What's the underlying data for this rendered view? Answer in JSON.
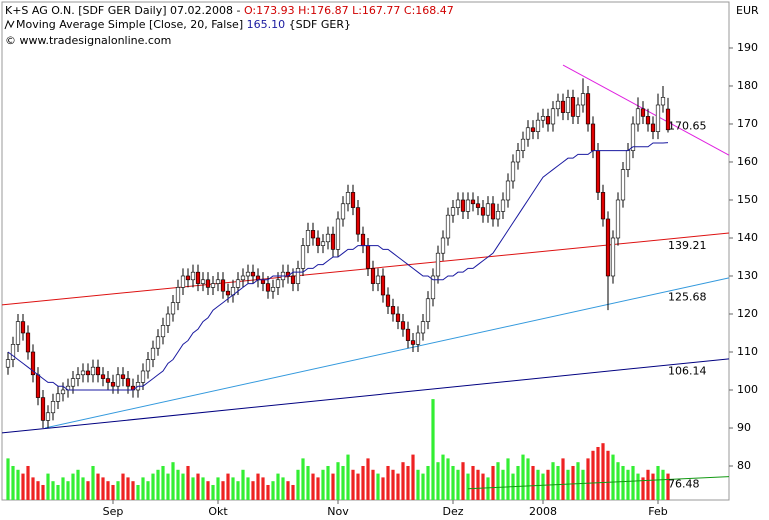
{
  "chart_data": {
    "type": "candlestick",
    "title": "K+S AG O.N. [SDF GER  Daily] 07.02.2008 - ",
    "ohlc_label": "O:173.93 H:176.87 L:167.77 C:168.47",
    "ma_label": "Moving Average Simple [Close, 20, False]",
    "ma_value_label": "165.10",
    "ma_suffix": " {SDF GER}",
    "copyright": "© www.tradesignalonline.com",
    "currency": "EUR",
    "up_color": "#ffffff",
    "down_color": "#e00000",
    "wick_color": "#000000",
    "volume_up_color": "#33ee33",
    "volume_down_color": "#ee2222",
    "ma_color": "#1a1aa0",
    "categories": [
      null,
      null,
      null,
      null,
      null,
      null,
      null,
      null,
      null,
      null,
      null,
      null,
      null,
      null,
      null,
      null,
      null,
      null,
      null,
      null,
      null,
      "Sep",
      null,
      null,
      null,
      null,
      null,
      null,
      null,
      null,
      null,
      null,
      null,
      null,
      null,
      null,
      null,
      null,
      null,
      null,
      null,
      null,
      "Okt",
      null,
      null,
      null,
      null,
      null,
      null,
      null,
      null,
      null,
      null,
      null,
      null,
      null,
      null,
      null,
      null,
      null,
      null,
      null,
      null,
      null,
      null,
      null,
      "Nov",
      null,
      null,
      null,
      null,
      null,
      null,
      null,
      null,
      null,
      null,
      null,
      null,
      null,
      null,
      null,
      null,
      null,
      null,
      null,
      null,
      null,
      null,
      "Dez",
      null,
      null,
      null,
      null,
      null,
      null,
      null,
      null,
      null,
      null,
      null,
      null,
      null,
      null,
      null,
      null,
      null,
      "2008",
      null,
      null,
      null,
      null,
      null,
      null,
      null,
      null,
      null,
      null,
      null,
      null,
      null,
      null,
      null,
      null,
      null,
      null,
      null,
      null,
      null,
      null,
      "Feb",
      null,
      null
    ],
    "open": [
      106,
      108,
      112,
      118,
      115,
      110,
      104,
      98,
      92,
      94,
      97,
      99,
      100,
      101,
      103,
      104,
      105,
      104,
      106,
      104,
      103,
      102,
      101,
      104,
      103,
      101,
      100,
      102,
      105,
      108,
      111,
      114,
      117,
      120,
      123,
      127,
      130,
      129,
      131,
      128,
      129,
      127,
      128,
      129,
      126,
      125,
      127,
      129,
      130,
      131,
      130,
      129,
      128,
      126,
      127,
      129,
      131,
      130,
      128,
      132,
      138,
      142,
      140,
      138,
      139,
      141,
      137,
      145,
      149,
      152,
      148,
      141,
      138,
      132,
      128,
      130,
      125,
      122,
      120,
      118,
      116,
      113,
      112,
      115,
      118,
      124,
      130,
      136,
      140,
      146,
      148,
      150,
      147,
      150,
      149,
      148,
      146,
      149,
      145,
      147,
      150,
      155,
      160,
      163,
      166,
      169,
      168,
      171,
      172,
      170,
      174,
      176,
      173,
      177,
      172,
      175,
      178,
      170,
      163,
      152,
      145,
      130,
      140,
      150,
      158,
      163,
      170,
      174,
      172,
      170,
      168,
      175,
      173.93
    ],
    "high": [
      110,
      114,
      120,
      120,
      117,
      112,
      106,
      100,
      96,
      99,
      101,
      102,
      103,
      105,
      106,
      107,
      107,
      108,
      108,
      106,
      105,
      104,
      106,
      106,
      105,
      103,
      104,
      107,
      110,
      113,
      116,
      119,
      122,
      125,
      129,
      132,
      132,
      133,
      133,
      131,
      131,
      130,
      131,
      131,
      128,
      129,
      131,
      132,
      133,
      133,
      132,
      131,
      130,
      129,
      131,
      133,
      133,
      132,
      134,
      140,
      144,
      144,
      142,
      141,
      143,
      143,
      147,
      151,
      154,
      154,
      150,
      143,
      140,
      134,
      132,
      132,
      127,
      124,
      122,
      120,
      118,
      115,
      117,
      120,
      126,
      132,
      138,
      142,
      148,
      150,
      152,
      152,
      152,
      152,
      151,
      150,
      151,
      151,
      149,
      152,
      157,
      162,
      165,
      168,
      171,
      171,
      173,
      174,
      174,
      176,
      178,
      178,
      179,
      179,
      177,
      182,
      180,
      172,
      165,
      154,
      147,
      142,
      152,
      160,
      165,
      172,
      177,
      176,
      174,
      172,
      178,
      180,
      176.87
    ],
    "low": [
      104,
      106,
      110,
      113,
      108,
      102,
      96,
      90,
      90,
      92,
      95,
      97,
      98,
      99,
      101,
      102,
      102,
      102,
      102,
      101,
      100,
      99,
      99,
      101,
      99,
      98,
      98,
      100,
      103,
      106,
      109,
      112,
      115,
      118,
      121,
      125,
      127,
      127,
      126,
      126,
      125,
      125,
      126,
      124,
      123,
      123,
      125,
      127,
      128,
      128,
      127,
      126,
      124,
      124,
      125,
      127,
      128,
      126,
      126,
      130,
      136,
      138,
      136,
      136,
      137,
      135,
      135,
      143,
      147,
      146,
      139,
      136,
      130,
      126,
      126,
      123,
      120,
      118,
      116,
      114,
      111,
      110,
      110,
      113,
      116,
      122,
      128,
      134,
      138,
      144,
      146,
      145,
      145,
      147,
      146,
      144,
      144,
      143,
      143,
      145,
      148,
      153,
      158,
      161,
      164,
      166,
      166,
      169,
      168,
      168,
      172,
      171,
      171,
      170,
      170,
      173,
      168,
      161,
      150,
      143,
      121,
      128,
      138,
      148,
      156,
      161,
      168,
      170,
      168,
      166,
      166,
      173,
      167.77
    ],
    "close": [
      108,
      112,
      118,
      115,
      110,
      104,
      98,
      92,
      94,
      97,
      99,
      100,
      101,
      103,
      104,
      105,
      104,
      106,
      104,
      103,
      102,
      101,
      104,
      103,
      101,
      100,
      102,
      105,
      108,
      111,
      114,
      117,
      120,
      123,
      127,
      130,
      129,
      131,
      128,
      129,
      127,
      128,
      129,
      126,
      125,
      127,
      129,
      130,
      131,
      130,
      129,
      128,
      126,
      127,
      129,
      131,
      130,
      128,
      132,
      138,
      142,
      140,
      138,
      139,
      141,
      137,
      145,
      149,
      152,
      148,
      141,
      138,
      132,
      128,
      130,
      125,
      122,
      120,
      118,
      116,
      113,
      112,
      115,
      118,
      124,
      130,
      136,
      140,
      146,
      148,
      150,
      147,
      150,
      149,
      148,
      146,
      149,
      145,
      147,
      150,
      155,
      160,
      163,
      166,
      169,
      168,
      171,
      172,
      170,
      174,
      176,
      173,
      177,
      172,
      175,
      178,
      170,
      163,
      152,
      145,
      130,
      140,
      150,
      158,
      163,
      170,
      174,
      172,
      170,
      168,
      175,
      177,
      168.47
    ],
    "ma": [
      110,
      109,
      108,
      107,
      106,
      105,
      104,
      103,
      102,
      102,
      101,
      101,
      100,
      100,
      100,
      100,
      100,
      100,
      100,
      100,
      100,
      100,
      100,
      100,
      100,
      100,
      101,
      101,
      102,
      103,
      104,
      105,
      107,
      108,
      110,
      112,
      113,
      115,
      116,
      118,
      119,
      121,
      122,
      123,
      124,
      125,
      126,
      127,
      128,
      128,
      129,
      129,
      129,
      130,
      130,
      130,
      130,
      131,
      131,
      131,
      132,
      132,
      133,
      133,
      134,
      135,
      135,
      136,
      137,
      137,
      138,
      138,
      138,
      138,
      138,
      137,
      137,
      136,
      135,
      134,
      133,
      132,
      131,
      130,
      130,
      129,
      129,
      129,
      130,
      130,
      131,
      131,
      132,
      132,
      133,
      134,
      135,
      136,
      138,
      140,
      142,
      144,
      146,
      148,
      150,
      152,
      154,
      156,
      157,
      158,
      159,
      160,
      161,
      161,
      162,
      162,
      162,
      163,
      163,
      163,
      163,
      163,
      163,
      163,
      163,
      164,
      164,
      164,
      164,
      165,
      165,
      165,
      165.1
    ],
    "volume": [
      82,
      80,
      79,
      78,
      80,
      77,
      76,
      75,
      78,
      76,
      75,
      77,
      76,
      78,
      79,
      77,
      76,
      80,
      78,
      77,
      76,
      75,
      76,
      78,
      77,
      76,
      75,
      77,
      76,
      78,
      79,
      80,
      78,
      81,
      79,
      78,
      80,
      77,
      78,
      77,
      76,
      75,
      77,
      76,
      78,
      77,
      76,
      79,
      77,
      76,
      78,
      77,
      75,
      76,
      78,
      77,
      76,
      75,
      79,
      82,
      80,
      78,
      77,
      79,
      80,
      78,
      81,
      80,
      83,
      79,
      78,
      80,
      82,
      79,
      78,
      77,
      80,
      79,
      78,
      81,
      80,
      83,
      79,
      78,
      80,
      97.6,
      81,
      83,
      82,
      80,
      79,
      81,
      78,
      80,
      79,
      78,
      77,
      80,
      81,
      79,
      82,
      78,
      80,
      83,
      82,
      80,
      79,
      78,
      79,
      81,
      80,
      82,
      79,
      80,
      81,
      79,
      82,
      84,
      85,
      86,
      84,
      83,
      81,
      80,
      79,
      80,
      78,
      77,
      79,
      78,
      80,
      79,
      78
    ],
    "trendlines": [
      {
        "color": "#dd1111",
        "start": [
          -1.2,
          122.4
        ],
        "end": [
          144.2,
          141.3
        ],
        "value": 139.21
      },
      {
        "color": "#3399dd",
        "start": [
          7.4,
          90
        ],
        "end": [
          144.2,
          129.5
        ],
        "value": 125.68
      },
      {
        "color": "#000080",
        "start": [
          -1.2,
          88.7
        ],
        "end": [
          144.2,
          108.2
        ],
        "value": 106.14
      },
      {
        "color": "#e020e0",
        "start": [
          111,
          185.5
        ],
        "end": [
          144.2,
          161.8
        ],
        "value": 170.65
      },
      {
        "color": "#119911",
        "start": [
          92,
          74
        ],
        "end": [
          144.2,
          77.2
        ],
        "value": 76.48
      }
    ],
    "xlim": [
      -1.2,
      144.2
    ],
    "ylim": [
      71.05,
      202.1
    ],
    "yticks": [
      80,
      90,
      100,
      110,
      120,
      130,
      140,
      150,
      160,
      170,
      180,
      190
    ]
  }
}
